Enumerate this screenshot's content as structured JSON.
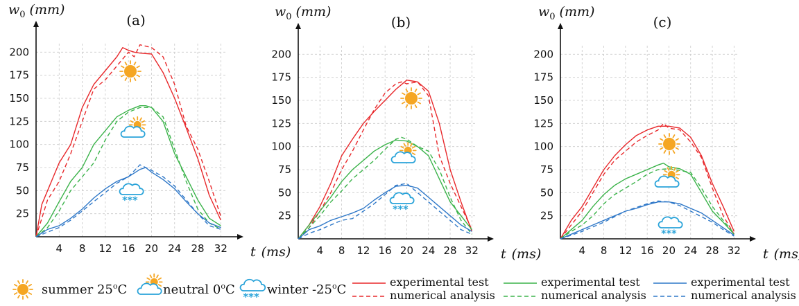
{
  "chart_data": [
    {
      "type": "line",
      "panel_label": "(a)",
      "ylabel_symbol": "w",
      "ylabel_sub": "0",
      "ylabel_unit": "(mm)",
      "xlabel_symbol": "t",
      "xlabel_unit": "(ms)",
      "xticks": [
        4,
        8,
        12,
        16,
        20,
        24,
        28,
        32
      ],
      "yticks": [
        25,
        50,
        75,
        100,
        125,
        150,
        175,
        200
      ],
      "xlim": [
        0,
        34
      ],
      "ylim": [
        0,
        225
      ],
      "grid": true,
      "series": [
        {
          "condition": "summer",
          "kind": "experimental",
          "color": "#e8282b",
          "x": [
            0,
            1,
            2,
            4,
            6,
            8,
            10,
            12,
            14,
            15,
            16,
            17,
            18,
            20,
            22,
            24,
            26,
            28,
            30,
            32
          ],
          "y": [
            0,
            35,
            50,
            80,
            100,
            140,
            165,
            180,
            195,
            205,
            202,
            200,
            199,
            198,
            178,
            150,
            118,
            85,
            45,
            18
          ]
        },
        {
          "condition": "summer",
          "kind": "numerical",
          "color": "#e8282b",
          "x": [
            0,
            1,
            2,
            4,
            6,
            8,
            10,
            12,
            14,
            16,
            17,
            18,
            20,
            22,
            24,
            26,
            28,
            30,
            32
          ],
          "y": [
            0,
            20,
            40,
            60,
            90,
            125,
            160,
            170,
            185,
            200,
            195,
            208,
            205,
            195,
            165,
            120,
            95,
            60,
            22
          ]
        },
        {
          "condition": "neutral",
          "kind": "experimental",
          "color": "#3bb34a",
          "x": [
            0,
            2,
            4,
            6,
            8,
            10,
            12,
            14,
            16,
            18,
            19,
            20,
            22,
            24,
            26,
            28,
            30,
            32
          ],
          "y": [
            0,
            15,
            38,
            60,
            75,
            100,
            115,
            130,
            137,
            142,
            142,
            140,
            125,
            90,
            65,
            40,
            20,
            12
          ]
        },
        {
          "condition": "neutral",
          "kind": "numerical",
          "color": "#3bb34a",
          "x": [
            0,
            2,
            4,
            6,
            8,
            10,
            12,
            14,
            16,
            18,
            20,
            22,
            24,
            26,
            28,
            30,
            32
          ],
          "y": [
            0,
            10,
            28,
            50,
            65,
            80,
            105,
            125,
            135,
            140,
            140,
            130,
            95,
            60,
            30,
            15,
            8
          ]
        },
        {
          "condition": "winter",
          "kind": "experimental",
          "color": "#2f78c8",
          "x": [
            0,
            2,
            4,
            6,
            8,
            10,
            12,
            14,
            16,
            18,
            19,
            20,
            22,
            24,
            26,
            28,
            30,
            32
          ],
          "y": [
            0,
            8,
            12,
            20,
            30,
            42,
            52,
            60,
            65,
            73,
            75,
            70,
            62,
            52,
            38,
            25,
            15,
            10
          ]
        },
        {
          "condition": "winter",
          "kind": "numerical",
          "color": "#2f78c8",
          "x": [
            0,
            2,
            4,
            6,
            8,
            10,
            12,
            14,
            16,
            18,
            20,
            22,
            24,
            26,
            28,
            30,
            32
          ],
          "y": [
            0,
            5,
            10,
            18,
            28,
            38,
            48,
            58,
            65,
            78,
            72,
            65,
            55,
            40,
            25,
            12,
            8
          ]
        }
      ]
    },
    {
      "type": "line",
      "panel_label": "(b)",
      "ylabel_symbol": "w",
      "ylabel_sub": "0",
      "ylabel_unit": "(mm)",
      "xlabel_symbol": "t",
      "xlabel_unit": "(ms)",
      "xticks": [
        4,
        8,
        12,
        16,
        20,
        24,
        28,
        32
      ],
      "yticks": [
        25,
        50,
        75,
        100,
        125,
        150,
        175,
        200
      ],
      "xlim": [
        0,
        34
      ],
      "ylim": [
        0,
        225
      ],
      "grid": true,
      "series": [
        {
          "condition": "summer",
          "kind": "experimental",
          "color": "#e8282b",
          "x": [
            0,
            2,
            4,
            6,
            8,
            10,
            12,
            14,
            16,
            18,
            20,
            21,
            22,
            24,
            26,
            28,
            30,
            32
          ],
          "y": [
            0,
            15,
            35,
            60,
            90,
            108,
            125,
            138,
            150,
            162,
            172,
            171,
            170,
            160,
            125,
            75,
            40,
            8
          ]
        },
        {
          "condition": "summer",
          "kind": "numerical",
          "color": "#e8282b",
          "x": [
            0,
            2,
            4,
            6,
            8,
            10,
            12,
            14,
            16,
            18,
            19,
            20,
            22,
            24,
            26,
            28,
            30,
            32
          ],
          "y": [
            0,
            12,
            30,
            50,
            75,
            95,
            118,
            140,
            158,
            168,
            170,
            168,
            170,
            155,
            90,
            60,
            35,
            10
          ]
        },
        {
          "condition": "neutral",
          "kind": "experimental",
          "color": "#3bb34a",
          "x": [
            0,
            2,
            4,
            6,
            8,
            10,
            12,
            14,
            16,
            18,
            20,
            22,
            24,
            26,
            28,
            30,
            32
          ],
          "y": [
            0,
            15,
            30,
            45,
            62,
            75,
            85,
            95,
            102,
            107,
            106,
            100,
            90,
            65,
            40,
            25,
            10
          ]
        },
        {
          "condition": "neutral",
          "kind": "numerical",
          "color": "#3bb34a",
          "x": [
            0,
            2,
            4,
            6,
            8,
            10,
            12,
            14,
            16,
            18,
            19,
            20,
            22,
            24,
            26,
            28,
            30,
            32
          ],
          "y": [
            0,
            12,
            25,
            40,
            52,
            65,
            75,
            85,
            97,
            108,
            110,
            108,
            100,
            95,
            75,
            45,
            20,
            5
          ]
        },
        {
          "condition": "winter",
          "kind": "experimental",
          "color": "#2f78c8",
          "x": [
            0,
            2,
            4,
            6,
            8,
            10,
            12,
            14,
            16,
            18,
            20,
            22,
            24,
            26,
            28,
            30,
            32
          ],
          "y": [
            0,
            10,
            14,
            20,
            24,
            28,
            33,
            42,
            50,
            57,
            58,
            55,
            45,
            35,
            25,
            15,
            8
          ]
        },
        {
          "condition": "winter",
          "kind": "numerical",
          "color": "#2f78c8",
          "x": [
            0,
            2,
            4,
            6,
            8,
            10,
            12,
            14,
            16,
            18,
            20,
            22,
            24,
            26,
            28,
            30,
            32
          ],
          "y": [
            0,
            6,
            10,
            15,
            20,
            22,
            30,
            38,
            48,
            58,
            60,
            50,
            40,
            30,
            20,
            10,
            5
          ]
        }
      ]
    },
    {
      "type": "line",
      "panel_label": "(c)",
      "ylabel_symbol": "w",
      "ylabel_sub": "0",
      "ylabel_unit": "(mm)",
      "xlabel_symbol": "t",
      "xlabel_unit": "(ms)",
      "xticks": [
        4,
        8,
        12,
        16,
        20,
        24,
        28,
        32
      ],
      "yticks": [
        25,
        50,
        75,
        100,
        125,
        150,
        175,
        200
      ],
      "xlim": [
        0,
        34
      ],
      "ylim": [
        0,
        225
      ],
      "grid": true,
      "series": [
        {
          "condition": "summer",
          "kind": "experimental",
          "color": "#e8282b",
          "x": [
            0,
            2,
            4,
            6,
            8,
            10,
            12,
            14,
            16,
            18,
            20,
            22,
            24,
            26,
            28,
            30,
            32
          ],
          "y": [
            0,
            20,
            35,
            55,
            75,
            90,
            102,
            112,
            118,
            122,
            122,
            120,
            110,
            90,
            60,
            35,
            8
          ]
        },
        {
          "condition": "summer",
          "kind": "numerical",
          "color": "#e8282b",
          "x": [
            0,
            2,
            4,
            6,
            8,
            10,
            12,
            14,
            16,
            18,
            19,
            20,
            22,
            24,
            26,
            28,
            30,
            32
          ],
          "y": [
            0,
            15,
            30,
            50,
            70,
            85,
            95,
            105,
            112,
            118,
            125,
            120,
            118,
            105,
            88,
            55,
            25,
            5
          ]
        },
        {
          "condition": "neutral",
          "kind": "experimental",
          "color": "#3bb34a",
          "x": [
            0,
            2,
            4,
            6,
            8,
            10,
            12,
            14,
            16,
            18,
            19,
            20,
            22,
            24,
            26,
            28,
            30,
            32
          ],
          "y": [
            0,
            10,
            20,
            35,
            48,
            58,
            65,
            70,
            75,
            80,
            82,
            78,
            76,
            70,
            50,
            30,
            18,
            5
          ]
        },
        {
          "condition": "neutral",
          "kind": "numerical",
          "color": "#3bb34a",
          "x": [
            0,
            2,
            4,
            6,
            8,
            10,
            12,
            14,
            16,
            18,
            20,
            22,
            24,
            26,
            28,
            30,
            32
          ],
          "y": [
            0,
            8,
            15,
            25,
            38,
            48,
            55,
            62,
            70,
            75,
            76,
            74,
            72,
            55,
            35,
            20,
            6
          ]
        },
        {
          "condition": "winter",
          "kind": "experimental",
          "color": "#2f78c8",
          "x": [
            0,
            2,
            4,
            6,
            8,
            10,
            12,
            14,
            16,
            18,
            20,
            22,
            24,
            26,
            28,
            30,
            32
          ],
          "y": [
            0,
            5,
            10,
            15,
            20,
            25,
            30,
            33,
            37,
            40,
            40,
            38,
            33,
            28,
            20,
            12,
            4
          ]
        },
        {
          "condition": "winter",
          "kind": "numerical",
          "color": "#2f78c8",
          "x": [
            0,
            2,
            4,
            6,
            8,
            10,
            12,
            14,
            16,
            18,
            20,
            22,
            24,
            26,
            28,
            30,
            32
          ],
          "y": [
            0,
            4,
            8,
            13,
            18,
            24,
            30,
            34,
            38,
            41,
            40,
            36,
            30,
            24,
            18,
            10,
            3
          ]
        }
      ]
    }
  ],
  "legend": {
    "conditions": [
      {
        "icon": "sun-icon",
        "label": "summer 25°C",
        "text": "summer 25",
        "sup": "o",
        "unit": "C"
      },
      {
        "icon": "cloud-sun-icon",
        "label": "neutral 0°C",
        "text": "neutral 0",
        "sup": "o",
        "unit": "C"
      },
      {
        "icon": "cloud-snow-icon",
        "label": "winter -25°C",
        "text": "winter -25",
        "sup": "o",
        "unit": "C"
      }
    ],
    "line_styles": [
      {
        "color": "#e8282b",
        "solid_label": "experimental test",
        "dashed_label": "numerical analysis"
      },
      {
        "color": "#3bb34a",
        "solid_label": "experimental test",
        "dashed_label": "numerical analysis"
      },
      {
        "color": "#2f78c8",
        "solid_label": "experimental test",
        "dashed_label": "numerical analysis"
      }
    ]
  },
  "colors": {
    "summer": "#e8282b",
    "neutral": "#3bb34a",
    "winter": "#2f78c8",
    "icon_sun": "#f5a623",
    "icon_cloud": "#29a3d9"
  }
}
